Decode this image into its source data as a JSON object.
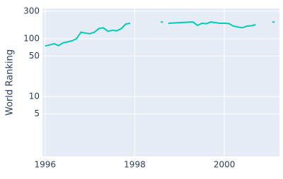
{
  "chart_data": {
    "type": "line",
    "y_label": "World Ranking",
    "log_y": true,
    "grid": true,
    "x": [
      1996.0,
      1996.1,
      1996.2,
      1996.3,
      1996.4,
      1996.5,
      1996.6,
      1996.7,
      1996.8,
      1996.9,
      1997.0,
      1997.1,
      1997.2,
      1997.3,
      1997.4,
      1997.5,
      1997.6,
      1997.7,
      1997.8,
      1997.9,
      1998.2,
      1998.58,
      1998.63,
      1998.7,
      1998.75,
      1998.9,
      1999.1,
      1999.3,
      1999.4,
      1999.5,
      1999.6,
      1999.7,
      1999.8,
      1999.9,
      2000.0,
      2000.1,
      2000.2,
      2000.3,
      2000.4,
      2000.5,
      2000.6,
      2000.7,
      2000.9,
      2001.07,
      2001.12
    ],
    "series": [
      {
        "color": "#00cdb4",
        "values": [
          75,
          78,
          82,
          76,
          85,
          88,
          92,
          100,
          130,
          125,
          122,
          130,
          150,
          155,
          135,
          140,
          137,
          150,
          180,
          185,
          null,
          195,
          195,
          null,
          185,
          188,
          192,
          195,
          170,
          185,
          182,
          195,
          190,
          185,
          185,
          183,
          165,
          160,
          155,
          165,
          168,
          175,
          null,
          195,
          195
        ]
      }
    ],
    "xlim": [
      1995.94,
      2001.23
    ],
    "xticks": [
      1996,
      1998,
      2000
    ],
    "ylim": [
      0.92,
      334
    ],
    "yticks": [
      5,
      10,
      50,
      100,
      300
    ]
  }
}
